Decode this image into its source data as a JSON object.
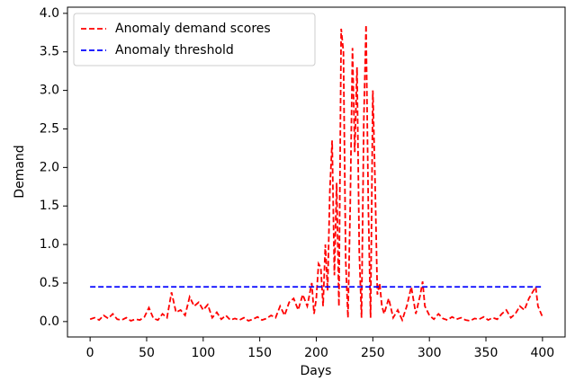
{
  "chart_data": {
    "type": "line",
    "x_label": "Days",
    "y_label": "Demand",
    "x": [
      0,
      4,
      8,
      12,
      16,
      20,
      24,
      28,
      32,
      36,
      40,
      44,
      48,
      52,
      56,
      60,
      64,
      68,
      72,
      76,
      80,
      84,
      88,
      92,
      96,
      100,
      104,
      108,
      112,
      116,
      120,
      124,
      128,
      132,
      136,
      140,
      144,
      148,
      152,
      156,
      160,
      164,
      168,
      172,
      176,
      180,
      184,
      188,
      192,
      196,
      198,
      200,
      202,
      204,
      206,
      208,
      210,
      212,
      214,
      216,
      218,
      220,
      222,
      224,
      226,
      228,
      230,
      232,
      234,
      236,
      238,
      240,
      242,
      244,
      246,
      248,
      250,
      252,
      254,
      256,
      258,
      260,
      264,
      268,
      272,
      276,
      280,
      284,
      288,
      292,
      294,
      296,
      300,
      304,
      308,
      312,
      316,
      320,
      324,
      328,
      332,
      336,
      340,
      344,
      348,
      352,
      356,
      360,
      364,
      368,
      372,
      376,
      380,
      384,
      388,
      392,
      394,
      396,
      400
    ],
    "series": [
      {
        "name": "Anomaly demand scores",
        "color": "#ff0000",
        "values": [
          0.03,
          0.05,
          0.02,
          0.08,
          0.04,
          0.1,
          0.03,
          0.02,
          0.05,
          0.01,
          0.03,
          0.02,
          0.06,
          0.18,
          0.04,
          0.02,
          0.1,
          0.05,
          0.38,
          0.12,
          0.15,
          0.08,
          0.32,
          0.2,
          0.25,
          0.15,
          0.22,
          0.05,
          0.12,
          0.03,
          0.08,
          0.02,
          0.04,
          0.02,
          0.05,
          0.01,
          0.03,
          0.06,
          0.02,
          0.04,
          0.08,
          0.05,
          0.2,
          0.08,
          0.25,
          0.3,
          0.15,
          0.35,
          0.2,
          0.5,
          0.1,
          0.3,
          0.75,
          0.7,
          0.2,
          1.0,
          0.4,
          1.7,
          2.35,
          0.6,
          1.8,
          0.2,
          3.8,
          3.5,
          0.8,
          0.05,
          1.5,
          3.55,
          2.2,
          3.3,
          0.9,
          0.05,
          2.6,
          3.85,
          1.5,
          0.05,
          3.0,
          1.8,
          0.35,
          0.5,
          0.2,
          0.1,
          0.3,
          0.05,
          0.15,
          0.02,
          0.2,
          0.45,
          0.1,
          0.35,
          0.52,
          0.2,
          0.08,
          0.03,
          0.1,
          0.04,
          0.02,
          0.06,
          0.03,
          0.05,
          0.02,
          0.01,
          0.04,
          0.03,
          0.06,
          0.02,
          0.05,
          0.03,
          0.1,
          0.15,
          0.05,
          0.1,
          0.2,
          0.15,
          0.3,
          0.4,
          0.45,
          0.2,
          0.06
        ]
      },
      {
        "name": "Anomaly threshold",
        "color": "#0000ff",
        "x": [
          0,
          400
        ],
        "values": [
          0.45,
          0.45
        ]
      }
    ],
    "xlim": [
      -20,
      420
    ],
    "ylim": [
      -0.2,
      4.08
    ],
    "xticks": [
      0,
      50,
      100,
      150,
      200,
      250,
      300,
      350,
      400
    ],
    "yticks": [
      {
        "value": 0,
        "label": "0.0"
      },
      0.5,
      {
        "value": 1,
        "label": "1.0"
      },
      1.5,
      {
        "value": 2,
        "label": "2.0"
      },
      2.5,
      {
        "value": 3,
        "label": "3.0"
      },
      3.5,
      {
        "value": 4,
        "label": "4.0"
      }
    ],
    "grid": false,
    "legend": "upper left",
    "line_style": "dashed"
  }
}
